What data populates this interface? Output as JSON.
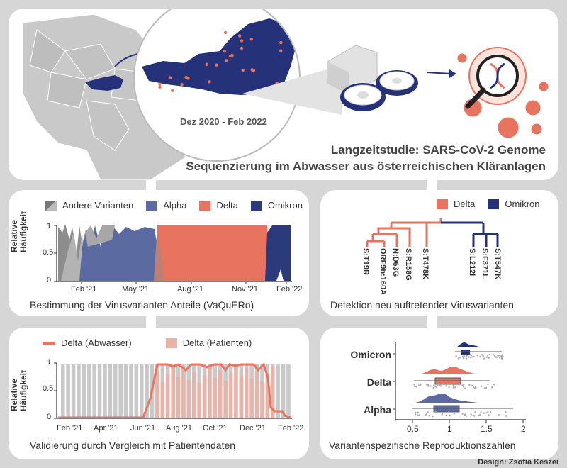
{
  "header": {
    "period": "Dez 2020 - Feb 2022",
    "title_line1": "Langzeitstudie: SARS-CoV-2 Genome",
    "title_line2": "Sequenzierung im Abwasser aus österreichischen Kläranlagen"
  },
  "panels": {
    "variants": {
      "legend": [
        "Andere Varianten",
        "Alpha",
        "Delta",
        "Omikron"
      ],
      "ylabel_1": "Relative",
      "ylabel_2": "Häufigkeit",
      "yticks": [
        "0",
        "0.5",
        "1"
      ],
      "xticks": [
        "Feb '21",
        "May '21",
        "Aug '21",
        "Nov '21",
        "Feb '22"
      ],
      "caption": "Bestimmung der Virusvarianten Anteile (VaQuERo)"
    },
    "tree": {
      "legend": [
        "Delta",
        "Omikron"
      ],
      "delta_mutations": [
        "S:T19R",
        "ORF9b:160A",
        "N:D63G",
        "S:R158G",
        "S:T478K"
      ],
      "omicron_mutations": [
        "S:L212I",
        "S:F371L",
        "S:T547K"
      ],
      "caption": "Detektion neu auftretender Virusvarianten"
    },
    "validation": {
      "legend": [
        "Delta (Abwasser)",
        "Delta (Patienten)"
      ],
      "ylabel_1": "Relative",
      "ylabel_2": "Häufigkeit",
      "yticks": [
        "0",
        "0.5",
        "1"
      ],
      "xticks": [
        "Feb '21",
        "Apr '21",
        "Jun '21",
        "Aug '21",
        "Oct '21",
        "Dec '21",
        "Feb '22"
      ],
      "caption": "Validierung durch Vergleich mit Patientendaten"
    },
    "reproduction": {
      "variants": [
        "Omicron",
        "Delta",
        "Alpha"
      ],
      "xticks": [
        "0.5",
        "1",
        "1.5",
        "2"
      ],
      "caption": "Variantenspezifische Reproduktionszahlen"
    }
  },
  "credit": "Design: Zsofia Keszei",
  "colors": {
    "delta": "#e8735f",
    "alpha": "#5b6aa0",
    "omicron": "#2a3a7a",
    "other": "#9a9a9a",
    "navy": "#25327a"
  }
}
